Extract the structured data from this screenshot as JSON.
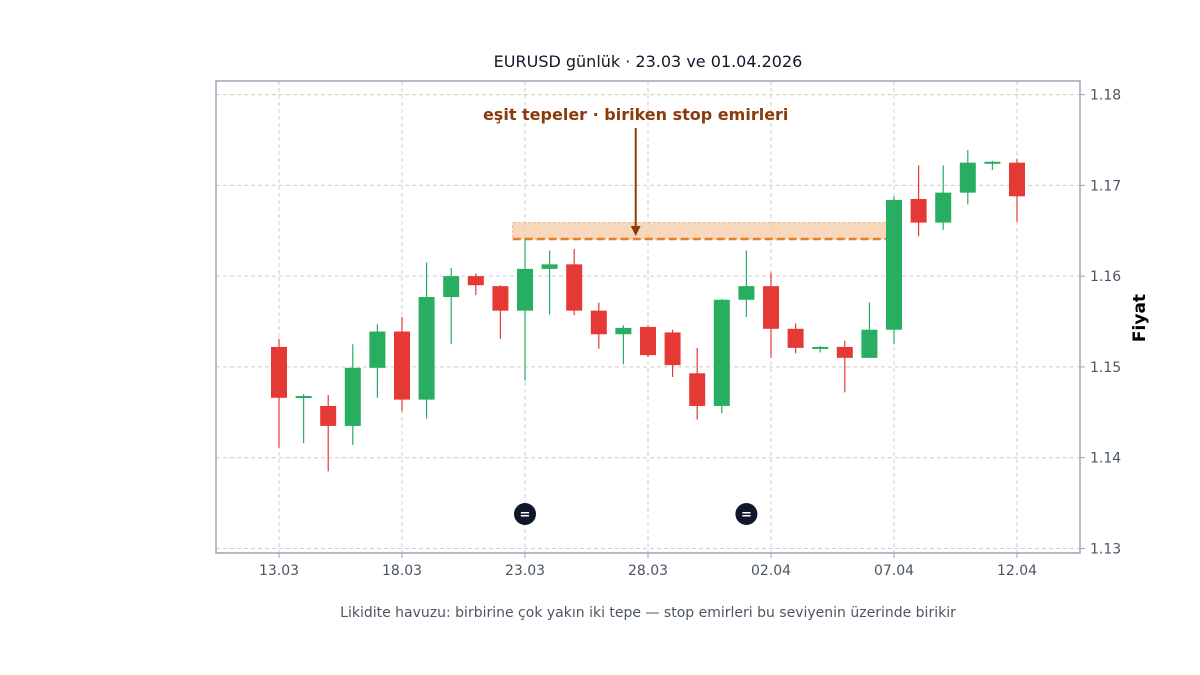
{
  "chart_data": {
    "type": "candlestick",
    "title": "EURUSD günlük · 23.03 ve 01.04.2026",
    "ylabel": "Fiyat",
    "xlabel": "",
    "caption": "Likidite havuzu: birbirine çok yakın iki tepe — stop emirleri bu seviyenin üzerinde birikir",
    "ylim": [
      1.1295,
      1.1815
    ],
    "yticks": [
      1.13,
      1.14,
      1.15,
      1.16,
      1.17,
      1.18
    ],
    "ytick_labels": [
      "1.13",
      "1.14",
      "1.15",
      "1.16",
      "1.17",
      "1.18"
    ],
    "grid": true,
    "y_axis_side": "right",
    "xticks": [
      {
        "label": "13.03",
        "index": 0
      },
      {
        "label": "18.03",
        "index": 5
      },
      {
        "label": "23.03",
        "index": 10
      },
      {
        "label": "28.03",
        "index": 15
      },
      {
        "label": "02.04",
        "index": 20
      },
      {
        "label": "07.04",
        "index": 25
      },
      {
        "label": "12.04",
        "index": 30
      }
    ],
    "colors": {
      "up": "#27ae60",
      "down": "#e53935",
      "level_line": "#e67e22",
      "zone_fill": "#f5cba7",
      "annotation_text": "#8b3a0a",
      "marker_fill": "#0f172a",
      "frame": "#9aa5b8",
      "grid": "#cccccc"
    },
    "candles": [
      {
        "date": "13.03",
        "open": 1.1522,
        "high": 1.1531,
        "low": 1.1411,
        "close": 1.1466
      },
      {
        "date": "14.03",
        "open": 1.1466,
        "high": 1.147,
        "low": 1.1416,
        "close": 1.1468
      },
      {
        "date": "15.03",
        "open": 1.1457,
        "high": 1.1469,
        "low": 1.1385,
        "close": 1.1435
      },
      {
        "date": "16.03",
        "open": 1.1435,
        "high": 1.1525,
        "low": 1.1414,
        "close": 1.1499
      },
      {
        "date": "17.03",
        "open": 1.1499,
        "high": 1.1547,
        "low": 1.1466,
        "close": 1.1539
      },
      {
        "date": "18.03",
        "open": 1.1539,
        "high": 1.1555,
        "low": 1.1451,
        "close": 1.1464
      },
      {
        "date": "19.03",
        "open": 1.1464,
        "high": 1.1615,
        "low": 1.1443,
        "close": 1.1577
      },
      {
        "date": "20.03",
        "open": 1.1577,
        "high": 1.1609,
        "low": 1.1525,
        "close": 1.16
      },
      {
        "date": "21.03",
        "open": 1.16,
        "high": 1.1603,
        "low": 1.1579,
        "close": 1.159
      },
      {
        "date": "22.03",
        "open": 1.1589,
        "high": 1.159,
        "low": 1.1531,
        "close": 1.1562
      },
      {
        "date": "23.03",
        "open": 1.1562,
        "high": 1.1641,
        "low": 1.1485,
        "close": 1.1608
      },
      {
        "date": "24.03",
        "open": 1.1608,
        "high": 1.1628,
        "low": 1.1558,
        "close": 1.1613
      },
      {
        "date": "25.03",
        "open": 1.1613,
        "high": 1.163,
        "low": 1.1557,
        "close": 1.1562
      },
      {
        "date": "26.03",
        "open": 1.1562,
        "high": 1.1571,
        "low": 1.152,
        "close": 1.1536
      },
      {
        "date": "27.03",
        "open": 1.1536,
        "high": 1.1546,
        "low": 1.1503,
        "close": 1.1543
      },
      {
        "date": "28.03",
        "open": 1.1544,
        "high": 1.1546,
        "low": 1.1511,
        "close": 1.1513
      },
      {
        "date": "29.03",
        "open": 1.1538,
        "high": 1.1541,
        "low": 1.1489,
        "close": 1.1502
      },
      {
        "date": "30.03",
        "open": 1.1493,
        "high": 1.1521,
        "low": 1.1442,
        "close": 1.1457
      },
      {
        "date": "31.03",
        "open": 1.1457,
        "high": 1.1575,
        "low": 1.1449,
        "close": 1.1574
      },
      {
        "date": "01.04",
        "open": 1.1574,
        "high": 1.1628,
        "low": 1.1555,
        "close": 1.1589
      },
      {
        "date": "02.04",
        "open": 1.1589,
        "high": 1.1604,
        "low": 1.151,
        "close": 1.1542
      },
      {
        "date": "03.04",
        "open": 1.1542,
        "high": 1.1548,
        "low": 1.1515,
        "close": 1.1521
      },
      {
        "date": "04.04",
        "open": 1.1521,
        "high": 1.1523,
        "low": 1.1516,
        "close": 1.1522
      },
      {
        "date": "05.04",
        "open": 1.1522,
        "high": 1.1529,
        "low": 1.1472,
        "close": 1.151
      },
      {
        "date": "06.04",
        "open": 1.151,
        "high": 1.1571,
        "low": 1.151,
        "close": 1.1541
      },
      {
        "date": "07.04",
        "open": 1.1541,
        "high": 1.1688,
        "low": 1.1525,
        "close": 1.1684
      },
      {
        "date": "08.04",
        "open": 1.1685,
        "high": 1.1722,
        "low": 1.1644,
        "close": 1.1659
      },
      {
        "date": "09.04",
        "open": 1.1659,
        "high": 1.1722,
        "low": 1.1651,
        "close": 1.1692
      },
      {
        "date": "10.04",
        "open": 1.1692,
        "high": 1.1739,
        "low": 1.1679,
        "close": 1.1725
      },
      {
        "date": "11.04",
        "open": 1.1724,
        "high": 1.1727,
        "low": 1.1717,
        "close": 1.1726
      },
      {
        "date": "12.04",
        "open": 1.1725,
        "high": 1.1729,
        "low": 1.166,
        "close": 1.1688
      }
    ],
    "liquidity_level": {
      "price": 1.1641,
      "zone_low": 1.1641,
      "zone_high": 1.1659,
      "from_index": 9.5,
      "to_index": 25
    },
    "annotation": {
      "text": "eşit tepeler · biriken stop emirleri",
      "arrow_index": 14.5,
      "arrow_to_price": 1.1642
    },
    "equal_markers": [
      {
        "index": 10,
        "glyph": "="
      },
      {
        "index": 19,
        "glyph": "="
      }
    ]
  }
}
